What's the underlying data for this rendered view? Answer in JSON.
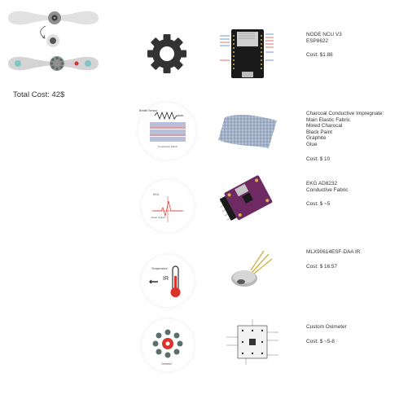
{
  "header": {
    "total_cost": "Total Cost: 42$"
  },
  "diagram_labels": {
    "breath_sensor": "Breath Sensor",
    "conductive_fabric": "Conductive Fabric",
    "ekg": "EKG",
    "heart_signal": "Heart Signal",
    "temperature": "Temperature",
    "ir": "IR",
    "oximeter": "Oximeter"
  },
  "rows": [
    {
      "lines": [
        "NODE NCU V3",
        "ESP8622"
      ],
      "cost": "Cost: $1.88"
    },
    {
      "lines": [
        "Charcoal Conductive Impregnate:",
        "Main Elastic Fabric",
        "Mixed Charocal",
        "Black Paint",
        "Graphite",
        "Glue"
      ],
      "cost": "Cost: $ 10"
    },
    {
      "lines": [
        "EKG AD8232",
        "Conductive Fabric"
      ],
      "cost": "Cost: $ ~5"
    },
    {
      "lines": [
        "MLX90614ESF-DAA IR"
      ],
      "cost": "Cost: $ 16.57"
    },
    {
      "lines": [
        "Custom Oximeter"
      ],
      "cost": "Cost: $ ~5-8"
    }
  ],
  "colors": {
    "accent_red": "#d9332b",
    "teal": "#7fc7c4",
    "gear": "#333333"
  }
}
